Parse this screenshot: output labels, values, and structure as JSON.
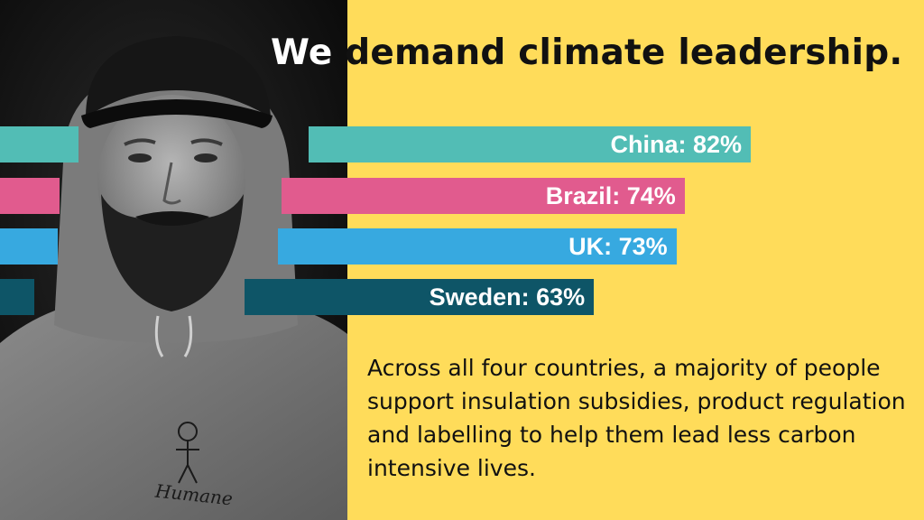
{
  "headline": {
    "first_word": "We",
    "rest": " demand climate leadership."
  },
  "chart_data": {
    "type": "bar",
    "orientation": "horizontal",
    "categories": [
      "China",
      "Brazil",
      "UK",
      "Sweden"
    ],
    "values": [
      82,
      74,
      73,
      63
    ],
    "labels": [
      "China: 82%",
      "Brazil: 74%",
      "UK: 73%",
      "Sweden: 63%"
    ],
    "colors": [
      "#52bdb5",
      "#e15b8e",
      "#37a9e0",
      "#0e5567"
    ],
    "unit": "%"
  },
  "body_text": "Across all four countries, a majority of people support insulation subsidies, product regulation and labelling to help them lead less carbon intensive lives.",
  "photo": {
    "sweatshirt_text": "Humane"
  }
}
